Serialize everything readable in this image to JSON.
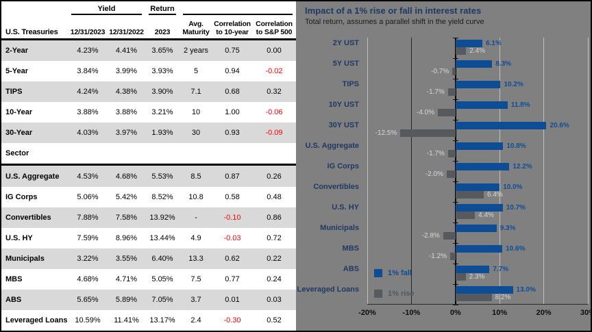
{
  "table": {
    "group_headers": {
      "yield": "Yield",
      "ret": "Return"
    },
    "columns": [
      "U.S. Treasuries",
      "12/31/2023",
      "12/31/2022",
      "2023",
      "Avg. Maturity",
      "Correlation to 10-year",
      "Correlation to S&P 500"
    ],
    "sections": [
      {
        "label": null,
        "rows": [
          [
            "2-Year",
            "4.23%",
            "4.41%",
            "3.65%",
            "2 years",
            "0.75",
            "0.00"
          ],
          [
            "5-Year",
            "3.84%",
            "3.99%",
            "3.93%",
            "5",
            "0.94",
            "-0.02"
          ],
          [
            "TIPS",
            "4.24%",
            "4.38%",
            "3.90%",
            "7.1",
            "0.68",
            "0.32"
          ],
          [
            "10-Year",
            "3.88%",
            "3.88%",
            "3.21%",
            "10",
            "1.00",
            "-0.06"
          ],
          [
            "30-Year",
            "4.03%",
            "3.97%",
            "1.93%",
            "30",
            "0.93",
            "-0.09"
          ]
        ]
      },
      {
        "label": "Sector",
        "rows": [
          [
            "U.S. Aggregate",
            "4.53%",
            "4.68%",
            "5.53%",
            "8.5",
            "0.87",
            "0.26"
          ],
          [
            "IG Corps",
            "5.06%",
            "5.42%",
            "8.52%",
            "10.8",
            "0.58",
            "0.48"
          ],
          [
            "Convertibles",
            "7.88%",
            "7.58%",
            "13.92%",
            "-",
            "-0.10",
            "0.86"
          ],
          [
            "U.S. HY",
            "7.59%",
            "8.96%",
            "13.44%",
            "4.9",
            "-0.03",
            "0.72"
          ],
          [
            "Municipals",
            "3.22%",
            "3.55%",
            "6.40%",
            "13.3",
            "0.62",
            "0.22"
          ],
          [
            "MBS",
            "4.68%",
            "4.71%",
            "5.05%",
            "7.5",
            "0.77",
            "0.24"
          ],
          [
            "ABS",
            "5.65%",
            "5.89%",
            "7.05%",
            "3.7",
            "0.01",
            "0.03"
          ],
          [
            "Leveraged Loans",
            "10.59%",
            "11.41%",
            "13.17%",
            "2.4",
            "-0.30",
            "0.52"
          ]
        ]
      }
    ]
  },
  "chart_data": {
    "type": "bar",
    "orientation": "horizontal",
    "title": "Impact of a 1% rise or fall in interest rates",
    "subtitle": "Total return, assumes a parallel shift in the yield curve",
    "categories": [
      "2Y UST",
      "5Y UST",
      "TIPS",
      "10Y UST",
      "30Y UST",
      "U.S. Aggregate",
      "IG Corps",
      "Convertibles",
      "U.S. HY",
      "Municipals",
      "MBS",
      "ABS",
      "Leveraged Loans"
    ],
    "series": [
      {
        "name": "1% fall",
        "color": "#0D4D96",
        "values": [
          6.1,
          8.3,
          10.2,
          11.8,
          20.6,
          10.8,
          12.2,
          10.0,
          10.7,
          9.3,
          10.6,
          7.7,
          13.0
        ]
      },
      {
        "name": "1% rise",
        "color": "#56595D",
        "values": [
          2.4,
          -0.7,
          -1.7,
          -4.0,
          -12.5,
          -1.7,
          -2.0,
          6.4,
          4.4,
          -2.8,
          -1.2,
          2.3,
          8.2
        ]
      }
    ],
    "xlim": [
      -20,
      30
    ],
    "x_tick_values": [
      -20,
      -10,
      0,
      10,
      20,
      30
    ],
    "x_tick_labels": [
      "-20%",
      "-10%",
      "0%",
      "10%",
      "20%",
      "30%"
    ],
    "legend_position": "inside-left-bottom",
    "grid": true,
    "value_label_format": "one-decimal-percent",
    "negative_value_color_in_table": "#FF0000"
  }
}
